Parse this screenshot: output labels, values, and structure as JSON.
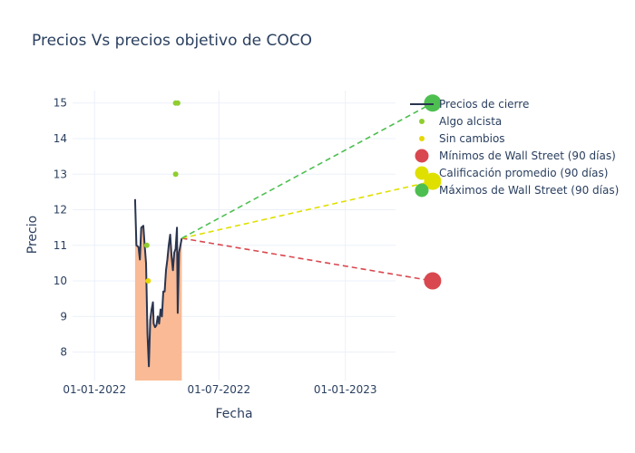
{
  "chart_data": {
    "type": "line",
    "title": "Precios Vs precios objetivo de COCO",
    "xlabel": "Fecha",
    "ylabel": "Precio",
    "x_ticks": [
      "01-01-2022",
      "01-07-2022",
      "01-01-2023"
    ],
    "y_ticks": [
      8,
      9,
      10,
      11,
      12,
      13,
      14,
      15
    ],
    "ylim": [
      7.2,
      15.35
    ],
    "xlim": [
      "2021-11-30",
      "2023-03-15"
    ],
    "grid": true,
    "legend_position": "right",
    "series": [
      {
        "name": "Precios de cierre",
        "kind": "line-area",
        "color": "#2a3550",
        "fill_color": "#f9ba95",
        "points": [
          [
            "2022-03-01",
            12.3
          ],
          [
            "2022-03-03",
            11.0
          ],
          [
            "2022-03-06",
            10.95
          ],
          [
            "2022-03-08",
            10.6
          ],
          [
            "2022-03-10",
            11.5
          ],
          [
            "2022-03-13",
            11.55
          ],
          [
            "2022-03-15",
            11.0
          ],
          [
            "2022-03-17",
            10.5
          ],
          [
            "2022-03-19",
            8.5
          ],
          [
            "2022-03-21",
            7.6
          ],
          [
            "2022-03-23",
            8.9
          ],
          [
            "2022-03-25",
            9.2
          ],
          [
            "2022-03-27",
            9.4
          ],
          [
            "2022-03-28",
            8.8
          ],
          [
            "2022-03-30",
            8.7
          ],
          [
            "2022-04-01",
            8.75
          ],
          [
            "2022-04-03",
            9.0
          ],
          [
            "2022-04-05",
            8.8
          ],
          [
            "2022-04-07",
            9.2
          ],
          [
            "2022-04-09",
            9.0
          ],
          [
            "2022-04-11",
            9.7
          ],
          [
            "2022-04-13",
            9.7
          ],
          [
            "2022-04-15",
            10.3
          ],
          [
            "2022-04-17",
            10.6
          ],
          [
            "2022-04-19",
            11.0
          ],
          [
            "2022-04-21",
            11.3
          ],
          [
            "2022-04-23",
            10.7
          ],
          [
            "2022-04-25",
            10.3
          ],
          [
            "2022-04-27",
            10.8
          ],
          [
            "2022-04-29",
            10.9
          ],
          [
            "2022-05-01",
            11.5
          ],
          [
            "2022-05-02",
            9.1
          ],
          [
            "2022-05-04",
            10.8
          ],
          [
            "2022-05-06",
            11.0
          ],
          [
            "2022-05-08",
            11.2
          ]
        ]
      },
      {
        "name": "Algo alcista",
        "kind": "markers",
        "color": "#8fce2e",
        "points": [
          [
            "2022-03-18",
            11.0
          ],
          [
            "2022-04-29",
            13.0
          ],
          [
            "2022-04-29",
            15.0
          ],
          [
            "2022-05-02",
            15.0
          ]
        ]
      },
      {
        "name": "Sin cambios",
        "kind": "markers",
        "color": "#e6d800",
        "points": [
          [
            "2022-03-20",
            10.0
          ]
        ]
      },
      {
        "name": "Mínimos de Wall Street (90 días)",
        "kind": "target",
        "color": "#d9484f",
        "from": [
          "2022-05-08",
          11.2
        ],
        "to": [
          "2023-05-08",
          10.0
        ]
      },
      {
        "name": "Calificación promedio (90 días)",
        "kind": "target",
        "color": "#dfe000",
        "from": [
          "2022-05-08",
          11.2
        ],
        "to": [
          "2023-05-08",
          12.8
        ]
      },
      {
        "name": "Máximos de Wall Street (90 días)",
        "kind": "target",
        "color": "#4dbf50",
        "from": [
          "2022-05-08",
          11.2
        ],
        "to": [
          "2023-05-08",
          15.0
        ]
      }
    ]
  }
}
